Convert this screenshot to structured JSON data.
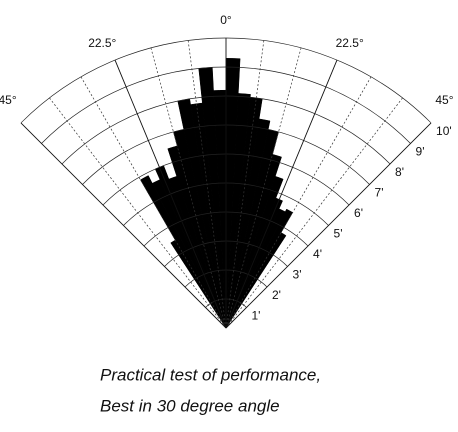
{
  "chart_data": {
    "type": "polar_histogram",
    "bins": [
      -33,
      -30,
      -27,
      -24,
      -21,
      -18,
      -15,
      -12,
      -9,
      -6,
      -3,
      0,
      3,
      6,
      9,
      12,
      15,
      18,
      21,
      24,
      27,
      30,
      33
    ],
    "values": [
      3.5,
      5.9,
      5.6,
      6.0,
      5.5,
      6.5,
      7.0,
      8.0,
      7.8,
      9.0,
      8.2,
      9.3,
      8.1,
      8.0,
      7.3,
      7.0,
      6.2,
      5.5,
      4.8,
      4.5,
      4.6,
      3.8
    ],
    "color": "#000000",
    "rlim": [
      0,
      10
    ],
    "rticks": [
      {
        "value": 1,
        "label": "1'"
      },
      {
        "value": 2,
        "label": "2'"
      },
      {
        "value": 3,
        "label": "3'"
      },
      {
        "value": 4,
        "label": "4'"
      },
      {
        "value": 5,
        "label": "5'"
      },
      {
        "value": 6,
        "label": "6'"
      },
      {
        "value": 7,
        "label": "7'"
      },
      {
        "value": 8,
        "label": "8'"
      },
      {
        "value": 9,
        "label": "9'"
      },
      {
        "value": 10,
        "label": "10'"
      }
    ],
    "anglelim": [
      -45,
      45
    ],
    "angleticks": [
      {
        "value": -45,
        "label": "45°"
      },
      {
        "value": -22.5,
        "label": "22.5°"
      },
      {
        "value": 0,
        "label": "0°"
      },
      {
        "value": 22.5,
        "label": "22.5°"
      },
      {
        "value": 45,
        "label": "45°"
      }
    ],
    "angle_grid": [
      -37.5,
      -30,
      -15,
      -7.5,
      7.5,
      15,
      30,
      37.5
    ],
    "caption": [
      "Practical test of performance,",
      "Best in 30 degree angle"
    ]
  }
}
